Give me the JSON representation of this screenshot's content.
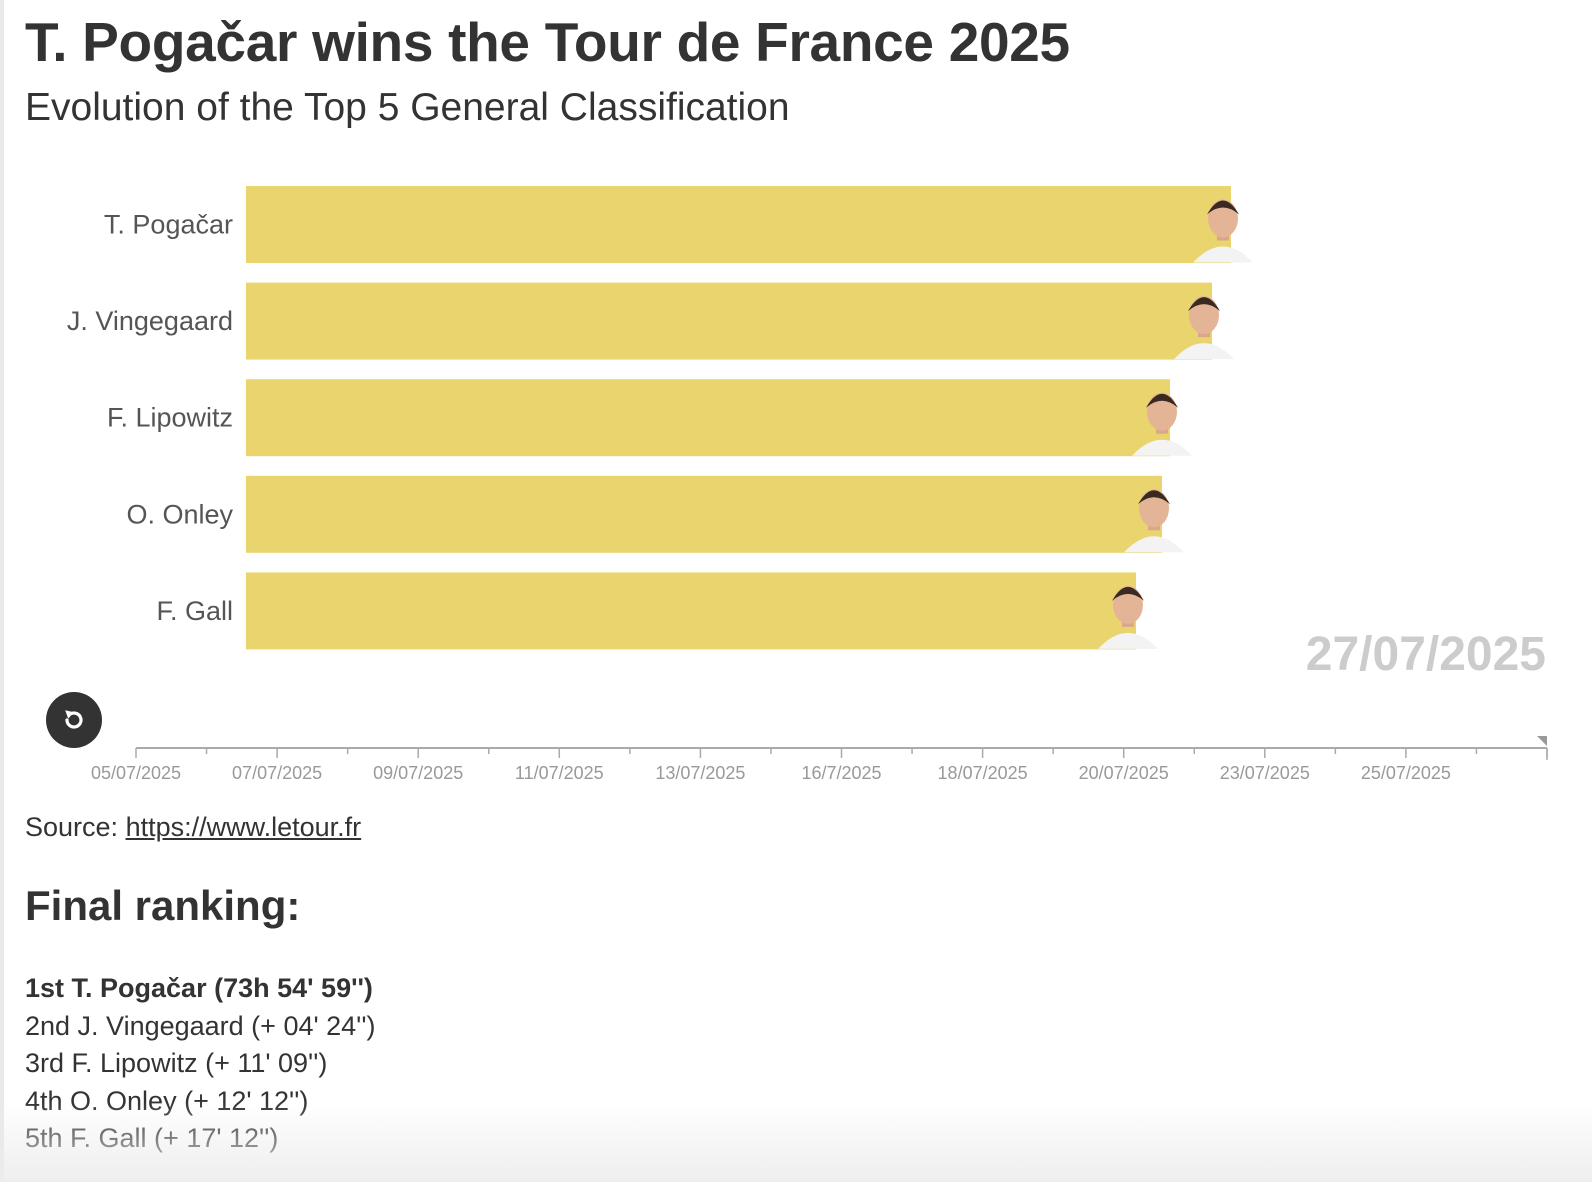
{
  "header": {
    "title": "T. Pogačar wins the Tour de France 2025",
    "subtitle": "Evolution of the Top 5 General Classification"
  },
  "chart_data": {
    "type": "bar",
    "orientation": "horizontal",
    "animated": true,
    "current_date": "27/07/2025",
    "categories": [
      "T. Pogačar",
      "J. Vingegaard",
      "F. Lipowitz",
      "O. Onley",
      "F. Gall"
    ],
    "values": [
      985,
      966,
      924,
      916,
      890
    ],
    "bar_color": "#e9d46e",
    "timeline": {
      "ticks": [
        "05/07/2025",
        "07/07/2025",
        "09/07/2025",
        "11/07/2025",
        "13/07/2025",
        "16/7/2025",
        "18/07/2025",
        "20/07/2025",
        "23/07/2025",
        "25/07/2025"
      ],
      "position": "end"
    }
  },
  "controls": {
    "replay_icon": "replay-icon"
  },
  "source": {
    "prefix": "Source: ",
    "link_text": "https://www.letour.fr"
  },
  "ranking": {
    "title": "Final ranking:",
    "items": [
      "1st T. Pogačar (73h 54' 59'')",
      "2nd J. Vingegaard (+ 04' 24'')",
      "3rd F. Lipowitz (+ 11' 09'')",
      "4th O. Onley (+ 12' 12'')",
      "5th F. Gall (+ 17' 12'')"
    ]
  }
}
